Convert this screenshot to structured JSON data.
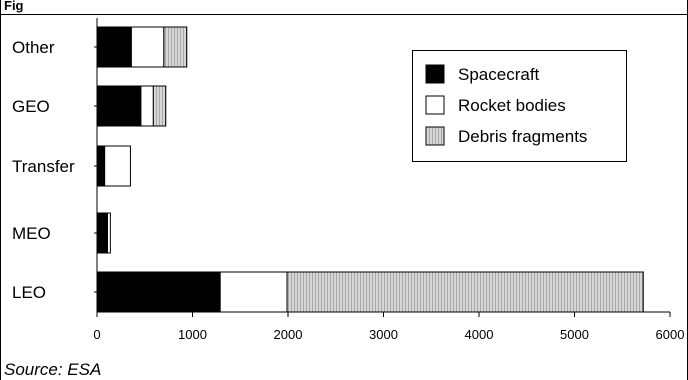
{
  "figure": {
    "header_label": "Fig",
    "source": "Source: ESA"
  },
  "chart_data": {
    "type": "bar",
    "orientation": "horizontal",
    "stacked": true,
    "categories": [
      "Other",
      "GEO",
      "Transfer",
      "MEO",
      "LEO"
    ],
    "series": [
      {
        "name": "Spacecraft",
        "values": [
          360,
          460,
          80,
          110,
          1290
        ],
        "color": "#000000",
        "pattern": "solid"
      },
      {
        "name": "Rocket bodies",
        "values": [
          340,
          130,
          270,
          30,
          700
        ],
        "color": "#ffffff",
        "pattern": "solid"
      },
      {
        "name": "Debris fragments",
        "values": [
          240,
          130,
          0,
          0,
          3730
        ],
        "color": "#bdbdbd",
        "pattern": "hatched"
      }
    ],
    "xlim": [
      0,
      6000
    ],
    "xticks": [
      0,
      1000,
      2000,
      3000,
      4000,
      5000,
      6000
    ],
    "legend": "upper-right",
    "grid": false
  }
}
